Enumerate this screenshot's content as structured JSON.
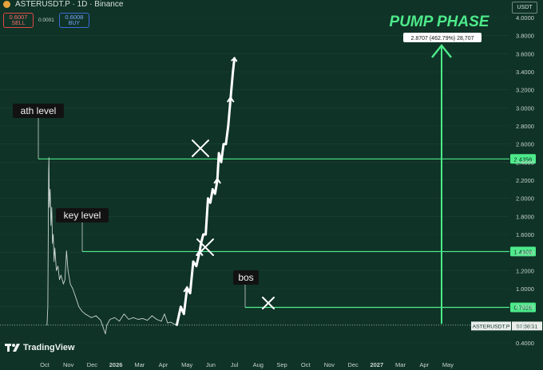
{
  "header": {
    "symbol": "ASTERUSDT.P · 1D · Binance",
    "sell_price": "0.6007",
    "sell_label": "SELL",
    "spread": "0.0001",
    "buy_price": "0.6008",
    "buy_label": "BUY",
    "currency": "USDT"
  },
  "annotations": {
    "pump_phase": "PUMP PHASE",
    "ath_level": "ath level",
    "key_level": "key level",
    "bos": "bos",
    "measure_label": "2.8707 (462.79%) 28,707"
  },
  "branding": {
    "name": "TradingView"
  },
  "colors": {
    "background": "#0f3327",
    "level_line": "#4dea8a",
    "projection": "#ffffff",
    "price_line": "#c9d4cf"
  },
  "chart_data": {
    "type": "line",
    "symbol": "ASTERUSDT.P",
    "interval": "1D",
    "exchange": "Binance",
    "y_ticks": [
      "4.0000",
      "3.8000",
      "3.6000",
      "3.4000",
      "3.2000",
      "3.0000",
      "2.8000",
      "2.6000",
      "2.4000",
      "2.2000",
      "2.0000",
      "1.8000",
      "1.6000",
      "1.4000",
      "1.2000",
      "1.0000",
      "0.8000",
      "0.6000",
      "0.4000"
    ],
    "x_ticks": [
      "Oct",
      "Nov",
      "Dec",
      "2026",
      "Mar",
      "Apr",
      "May",
      "Jun",
      "Jul",
      "Aug",
      "Sep",
      "Oct",
      "Nov",
      "Dec",
      "2027",
      "Mar",
      "Apr",
      "May"
    ],
    "levels": [
      {
        "value": 2.4356,
        "label": "2.4356"
      },
      {
        "value": 1.4109,
        "label": "1.4109"
      },
      {
        "value": 0.7926,
        "label": "0.7926"
      }
    ],
    "last_price": {
      "symbol_label": "ASTERUSDT.P",
      "countdown": "07:56:31"
    },
    "price_path": [
      [
        2,
        0.6
      ],
      [
        3,
        0.6
      ],
      [
        4,
        0.8
      ],
      [
        5,
        2.3
      ],
      [
        5.4,
        2.45
      ],
      [
        6,
        1.9
      ],
      [
        7,
        2.1
      ],
      [
        8,
        1.7
      ],
      [
        9,
        1.9
      ],
      [
        10,
        1.5
      ],
      [
        11,
        1.6
      ],
      [
        12,
        1.3
      ],
      [
        13,
        1.45
      ],
      [
        15,
        1.2
      ],
      [
        17,
        1.25
      ],
      [
        19,
        1.1
      ],
      [
        21,
        1.15
      ],
      [
        24,
        1.05
      ],
      [
        26,
        1.1
      ],
      [
        28,
        1.42
      ],
      [
        30,
        1.2
      ],
      [
        33,
        1.05
      ],
      [
        36,
        1.0
      ],
      [
        40,
        0.9
      ],
      [
        44,
        0.8
      ],
      [
        48,
        0.75
      ],
      [
        52,
        0.72
      ],
      [
        56,
        0.7
      ],
      [
        60,
        0.68
      ],
      [
        66,
        0.7
      ],
      [
        72,
        0.65
      ],
      [
        76,
        0.55
      ],
      [
        78,
        0.5
      ],
      [
        80,
        0.6
      ],
      [
        84,
        0.66
      ],
      [
        90,
        0.68
      ],
      [
        96,
        0.64
      ],
      [
        102,
        0.72
      ],
      [
        108,
        0.66
      ],
      [
        114,
        0.68
      ],
      [
        120,
        0.66
      ],
      [
        126,
        0.67
      ],
      [
        132,
        0.65
      ],
      [
        138,
        0.7
      ],
      [
        144,
        0.66
      ],
      [
        150,
        0.64
      ],
      [
        154,
        0.72
      ],
      [
        158,
        0.62
      ],
      [
        162,
        0.63
      ],
      [
        166,
        0.61
      ],
      [
        170,
        0.6
      ]
    ],
    "projection_path": [
      [
        170,
        0.6
      ],
      [
        175,
        0.8
      ],
      [
        179,
        0.72
      ],
      [
        183,
        1.0
      ],
      [
        187,
        0.95
      ],
      [
        191,
        1.3
      ],
      [
        195,
        1.25
      ],
      [
        199,
        1.4
      ],
      [
        201,
        1.5
      ],
      [
        204,
        1.6
      ],
      [
        207,
        1.6
      ],
      [
        210,
        2.0
      ],
      [
        213,
        1.95
      ],
      [
        216,
        2.1
      ],
      [
        219,
        2.05
      ],
      [
        222,
        2.2
      ],
      [
        224,
        2.5
      ],
      [
        227,
        2.4
      ],
      [
        230,
        2.6
      ],
      [
        233,
        2.6
      ],
      [
        236,
        2.8
      ],
      [
        239,
        3.1
      ],
      [
        242,
        3.4
      ],
      [
        244,
        3.55
      ]
    ]
  }
}
